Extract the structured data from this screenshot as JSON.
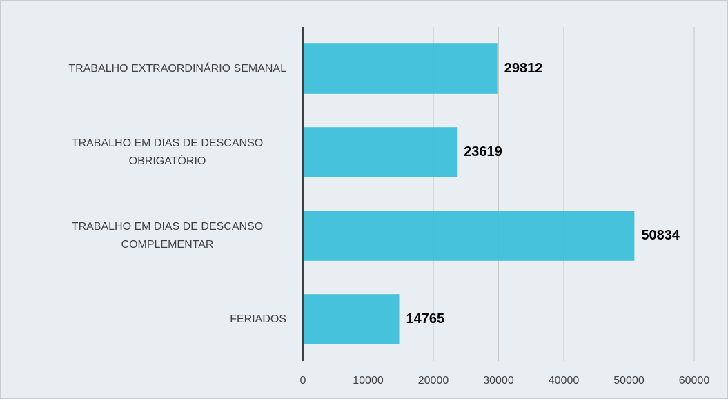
{
  "chart_data": {
    "type": "bar",
    "orientation": "horizontal",
    "categories": [
      "TRABALHO EXTRAORDINÁRIO SEMANAL",
      "TRABALHO EM DIAS DE DESCANSO OBRIGATÓRIO",
      "TRABALHO EM DIAS DE DESCANSO COMPLEMENTAR",
      "FERIADOS"
    ],
    "values": [
      29812,
      23619,
      50834,
      14765
    ],
    "color": "#3dbfda",
    "xlim": [
      0,
      60000
    ],
    "xticks": [
      0,
      10000,
      20000,
      30000,
      40000,
      50000,
      60000
    ],
    "grid": true
  }
}
